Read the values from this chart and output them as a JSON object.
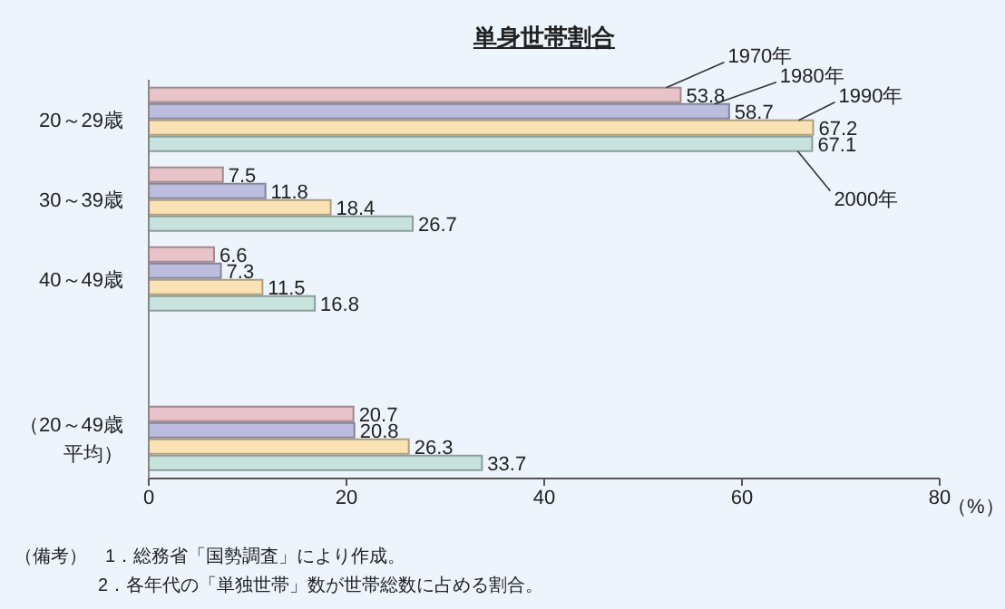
{
  "chart_data": {
    "type": "bar",
    "orientation": "horizontal",
    "title": "単身世帯割合",
    "categories": [
      "20～29歳",
      "30～39歳",
      "40～49歳",
      null,
      "（20～49歳平均）"
    ],
    "series": [
      {
        "name": "1970年",
        "color": "#e8c4ca",
        "values": [
          53.8,
          7.5,
          6.6,
          null,
          20.7
        ]
      },
      {
        "name": "1980年",
        "color": "#bcbcde",
        "values": [
          58.7,
          11.8,
          7.3,
          null,
          20.8
        ]
      },
      {
        "name": "1990年",
        "color": "#fbe2b4",
        "values": [
          67.2,
          18.4,
          11.5,
          null,
          26.3
        ]
      },
      {
        "name": "2000年",
        "color": "#c8e2de",
        "values": [
          67.1,
          26.7,
          16.8,
          null,
          33.7
        ]
      }
    ],
    "xlabel": "（%）",
    "xlim": [
      0,
      80
    ],
    "xticks": [
      0,
      20,
      40,
      60,
      80
    ],
    "data_labels": true,
    "annotations": [
      "（備考）　1．総務省「国勢調査」により作成。",
      "2．各年代の「単独世帯」数が世帯総数に占める割合。"
    ]
  }
}
